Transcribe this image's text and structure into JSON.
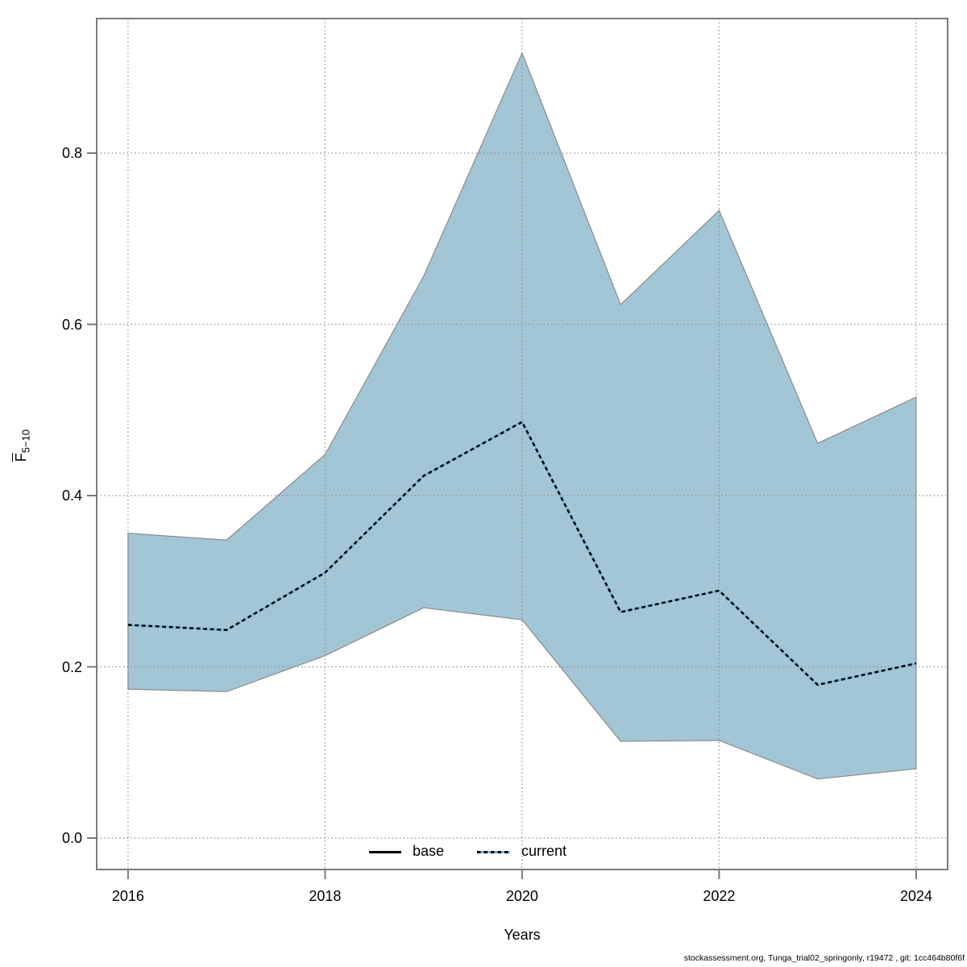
{
  "chart_data": {
    "type": "area",
    "title": "",
    "xlabel": "Years",
    "ylabel_base": "F",
    "ylabel_sub": "5−10",
    "x": [
      2016,
      2017,
      2018,
      2019,
      2020,
      2021,
      2022,
      2023,
      2024
    ],
    "series": [
      {
        "name": "current",
        "style": "dotted",
        "values": [
          0.249,
          0.243,
          0.31,
          0.423,
          0.486,
          0.264,
          0.289,
          0.179,
          0.204
        ]
      }
    ],
    "band": {
      "name": "confidence-interval",
      "upper": [
        0.356,
        0.348,
        0.448,
        0.656,
        0.917,
        0.623,
        0.733,
        0.461,
        0.515
      ],
      "lower": [
        0.174,
        0.171,
        0.213,
        0.269,
        0.255,
        0.113,
        0.114,
        0.069,
        0.081
      ]
    },
    "xticks": [
      {
        "label": "2016",
        "value": 2016
      },
      {
        "label": "2018",
        "value": 2018
      },
      {
        "label": "2020",
        "value": 2020
      },
      {
        "label": "2022",
        "value": 2022
      },
      {
        "label": "2024",
        "value": 2024
      }
    ],
    "yticks": [
      {
        "label": "0.0",
        "value": 0.0
      },
      {
        "label": "0.2",
        "value": 0.2
      },
      {
        "label": "0.4",
        "value": 0.4
      },
      {
        "label": "0.6",
        "value": 0.6
      },
      {
        "label": "0.8",
        "value": 0.8
      }
    ],
    "xlim": [
      2015.68,
      2024.32
    ],
    "ylim": [
      -0.037,
      0.954
    ],
    "grid": "dotted",
    "legend_position": "bottom-center",
    "legend": [
      {
        "label": "base",
        "style": "solid-black-line"
      },
      {
        "label": "current",
        "style": "dotted-blue-line"
      }
    ]
  },
  "colors": {
    "band_fill": "#a2c6d6",
    "band_edge": "#8a8a8a",
    "grid": "#8c8c8c",
    "frame": "#7b7b7b",
    "line_underlay": "#79b7de",
    "line_dash": "#000000"
  },
  "footer": {
    "text": "stockassessment.org, Tunga_trial02_springonly, r19472 , git: 1cc464b80f6f"
  }
}
